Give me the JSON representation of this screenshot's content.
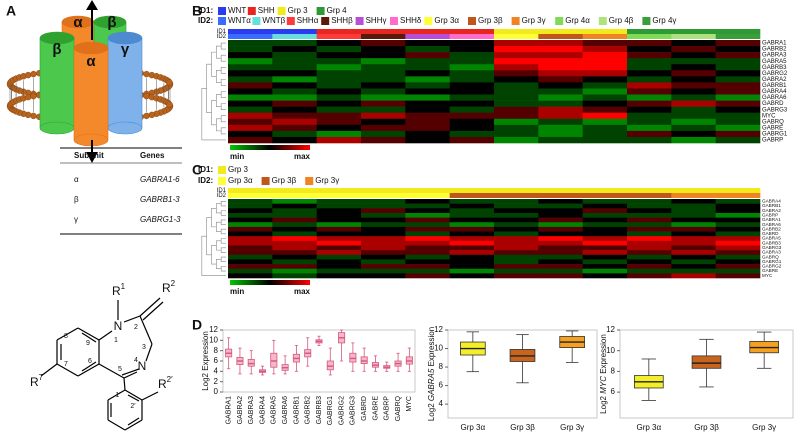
{
  "panels": [
    "A",
    "B",
    "C",
    "D"
  ],
  "receptor": {
    "labels": [
      "α",
      "β",
      "β",
      "α",
      "γ"
    ]
  },
  "table": {
    "header": [
      "Subunit",
      "Genes"
    ],
    "rows": [
      [
        "α",
        "GABRA1-6"
      ],
      [
        "β",
        "GABRB1-3"
      ],
      [
        "γ",
        "GABRG1-3"
      ]
    ]
  },
  "structure": {
    "atoms": [
      "N",
      "N"
    ],
    "groups": [
      {
        "text": "R",
        "sup": "1"
      },
      {
        "text": "R",
        "sup": "2"
      },
      {
        "text": "R",
        "sup": "7"
      },
      {
        "text": "R",
        "sup": "2′"
      }
    ],
    "numbers": [
      "1",
      "2",
      "3",
      "4",
      "5",
      "6",
      "7",
      "8",
      "9",
      "1′",
      "2′"
    ]
  },
  "chart_data": [
    {
      "type": "heatmap",
      "id_labels": [
        "ID1",
        "ID2"
      ],
      "id1_prefix": "ID1:",
      "id2_prefix": "ID2:",
      "id1": [
        {
          "name": "WNT",
          "color": "#2a3cf0"
        },
        {
          "name": "SHH",
          "color": "#e8261f"
        },
        {
          "name": "Grp 3",
          "color": "#f2ea1a"
        },
        {
          "name": "Grp 4",
          "color": "#2f9a35"
        }
      ],
      "id2": [
        {
          "name": "WNTα",
          "color": "#3a6cff",
          "parent": 0
        },
        {
          "name": "WNTβ",
          "color": "#66dede",
          "parent": 0
        },
        {
          "name": "SHHα",
          "color": "#ff3a3a",
          "parent": 1
        },
        {
          "name": "SHHβ",
          "color": "#5a1a0a",
          "parent": 1
        },
        {
          "name": "SHHγ",
          "color": "#b64fd8",
          "parent": 1
        },
        {
          "name": "SHHδ",
          "color": "#ff6ccc",
          "parent": 1
        },
        {
          "name": "Grp 3α",
          "color": "#ffff38",
          "parent": 2
        },
        {
          "name": "Grp 3β",
          "color": "#c0561a",
          "parent": 2
        },
        {
          "name": "Grp 3γ",
          "color": "#f08422",
          "parent": 2
        },
        {
          "name": "Grp 4α",
          "color": "#7fda55",
          "parent": 3
        },
        {
          "name": "Grp 4β",
          "color": "#aee27e",
          "parent": 3
        },
        {
          "name": "Grp 4γ",
          "color": "#3a9e3a",
          "parent": 3
        }
      ],
      "columns": [
        0,
        1,
        2,
        3,
        4,
        5,
        6,
        7,
        8,
        9,
        10,
        11
      ],
      "rows": [
        "GABRA1",
        "GABRB2",
        "GABRA3",
        "GABRA5",
        "GABRB3",
        "GABRG2",
        "GABRA2",
        "GABRB1",
        "GABRA4",
        "GABRA6",
        "GABRD",
        "GABRG3",
        "MYC",
        "GABRQ",
        "GABRE",
        "GABRG1",
        "GABRP"
      ],
      "values": [
        [
          -1,
          -1,
          0,
          1,
          0,
          0,
          2,
          2,
          1,
          1,
          0,
          1
        ],
        [
          -1,
          0,
          -1,
          0,
          -1,
          0,
          3,
          3,
          2,
          0,
          1,
          0
        ],
        [
          0,
          -1,
          0,
          0,
          1,
          -1,
          2,
          2,
          3,
          1,
          0,
          1
        ],
        [
          -2,
          -1,
          -1,
          -2,
          -1,
          -1,
          3,
          3,
          3,
          -1,
          -1,
          -1
        ],
        [
          -1,
          -1,
          -2,
          -1,
          -1,
          -2,
          2,
          3,
          3,
          -1,
          0,
          -1
        ],
        [
          0,
          0,
          -1,
          -1,
          0,
          -1,
          1,
          2,
          2,
          0,
          1,
          0
        ],
        [
          -1,
          -2,
          -1,
          -1,
          -2,
          -1,
          0,
          1,
          0,
          -1,
          0,
          -1
        ],
        [
          1,
          0,
          -1,
          0,
          -1,
          0,
          -1,
          0,
          -1,
          2,
          1,
          1
        ],
        [
          0,
          -1,
          0,
          -1,
          0,
          0,
          -1,
          -1,
          -2,
          1,
          0,
          1
        ],
        [
          -2,
          -2,
          -1,
          -2,
          -2,
          -1,
          -1,
          -2,
          -1,
          -2,
          -1,
          -2
        ],
        [
          0,
          1,
          0,
          1,
          0,
          0,
          -1,
          -1,
          0,
          1,
          2,
          1
        ],
        [
          -1,
          0,
          -1,
          -1,
          0,
          -1,
          1,
          2,
          1,
          0,
          -1,
          0
        ],
        [
          2,
          1,
          1,
          2,
          1,
          1,
          1,
          2,
          3,
          -1,
          -1,
          -1
        ],
        [
          1,
          2,
          1,
          0,
          1,
          0,
          -2,
          -1,
          -2,
          -1,
          -2,
          -1
        ],
        [
          2,
          1,
          0,
          1,
          1,
          0,
          -1,
          -2,
          -1,
          -2,
          -1,
          -2
        ],
        [
          0,
          -1,
          -2,
          -1,
          0,
          -1,
          -1,
          -2,
          -1,
          1,
          0,
          1
        ],
        [
          1,
          0,
          2,
          1,
          0,
          1,
          -2,
          -1,
          -1,
          -1,
          -2,
          -1
        ]
      ],
      "vlim": [
        -3,
        3
      ],
      "colorbar": [
        "min",
        "max"
      ]
    },
    {
      "type": "heatmap",
      "id_labels": [
        "ID1",
        "ID2"
      ],
      "id1_prefix": "ID1:",
      "id2_prefix": "ID2:",
      "id1": [
        {
          "name": "Grp 3",
          "color": "#f2ea1a"
        }
      ],
      "id2": [
        {
          "name": "Grp 3α",
          "color": "#ffff38",
          "parent": 0
        },
        {
          "name": "Grp 3β",
          "color": "#c0561a",
          "parent": 0
        },
        {
          "name": "Grp 3γ",
          "color": "#f08422",
          "parent": 0
        }
      ],
      "columns": [
        0,
        0,
        0,
        0,
        0,
        1,
        1,
        1,
        1,
        1,
        2,
        2
      ],
      "rows": [
        "GABRA4",
        "GABRB1",
        "GABRA2",
        "GABRP",
        "GABRA1",
        "GABRA6",
        "GABRB2",
        "GABRD",
        "GABRA5",
        "GABRB3",
        "GABRG3",
        "GABRA3",
        "GABRQ",
        "GABRG1",
        "GABRG2",
        "GABRE",
        "MYC"
      ],
      "values": [
        [
          -1,
          -2,
          -1,
          -1,
          0,
          -1,
          -1,
          0,
          -1,
          -1,
          0,
          -1
        ],
        [
          -1,
          0,
          -1,
          -1,
          -1,
          0,
          -1,
          -1,
          0,
          -1,
          -1,
          0
        ],
        [
          0,
          -1,
          0,
          1,
          0,
          -1,
          0,
          0,
          1,
          0,
          -1,
          0
        ],
        [
          -1,
          -1,
          0,
          -1,
          -2,
          -1,
          -1,
          0,
          -1,
          -1,
          -1,
          -2
        ],
        [
          0,
          1,
          0,
          0,
          1,
          0,
          0,
          1,
          0,
          1,
          0,
          0
        ],
        [
          -2,
          -1,
          -2,
          -1,
          -1,
          -2,
          -1,
          -2,
          -1,
          -1,
          -2,
          -1
        ],
        [
          1,
          0,
          1,
          0,
          1,
          1,
          0,
          1,
          0,
          1,
          1,
          0
        ],
        [
          0,
          -1,
          0,
          0,
          -1,
          0,
          -1,
          0,
          0,
          -1,
          0,
          -1
        ],
        [
          2,
          3,
          2,
          2,
          3,
          2,
          2,
          3,
          2,
          3,
          2,
          2
        ],
        [
          2,
          2,
          3,
          2,
          2,
          3,
          2,
          2,
          3,
          2,
          2,
          3
        ],
        [
          1,
          2,
          1,
          2,
          1,
          1,
          2,
          1,
          1,
          2,
          1,
          2
        ],
        [
          1,
          1,
          2,
          1,
          1,
          2,
          1,
          1,
          2,
          1,
          2,
          1
        ],
        [
          -1,
          0,
          -1,
          0,
          -1,
          0,
          -1,
          -1,
          0,
          -1,
          0,
          -1
        ],
        [
          0,
          -1,
          0,
          -1,
          0,
          0,
          -1,
          0,
          -1,
          0,
          -1,
          0
        ],
        [
          1,
          1,
          0,
          1,
          1,
          0,
          1,
          1,
          0,
          1,
          0,
          1
        ],
        [
          -1,
          -2,
          -1,
          -1,
          -1,
          -2,
          -1,
          -1,
          -2,
          -1,
          -1,
          -1
        ],
        [
          0,
          -1,
          0,
          0,
          1,
          0,
          1,
          1,
          0,
          1,
          2,
          1
        ]
      ],
      "vlim": [
        -3,
        3
      ],
      "colorbar": [
        "min",
        "max"
      ]
    },
    {
      "type": "box",
      "ylabel": [
        "Log2 Expression"
      ],
      "color": "#d6567e",
      "fill": "#f4b8c8",
      "categories": [
        "GABRA1",
        "GABRA2",
        "GABRA3",
        "GABRA4",
        "GABRA5",
        "GABRA6",
        "GABRB1",
        "GABRB2",
        "GABRB3",
        "GABRG1",
        "GABRG2",
        "GABRG3",
        "GABRD",
        "GABRE",
        "GABRP",
        "GABRQ",
        "MYC"
      ],
      "boxes": [
        {
          "low": 4.5,
          "q1": 6.8,
          "median": 7.5,
          "q3": 8.3,
          "high": 10.5
        },
        {
          "low": 3.5,
          "q1": 5.3,
          "median": 6,
          "q3": 6.7,
          "high": 8.5
        },
        {
          "low": 3.5,
          "q1": 5,
          "median": 5.5,
          "q3": 6.3,
          "high": 8
        },
        {
          "low": 3.3,
          "q1": 3.8,
          "median": 4,
          "q3": 4.3,
          "high": 5
        },
        {
          "low": 3.5,
          "q1": 4.8,
          "median": 6,
          "q3": 7.5,
          "high": 10
        },
        {
          "low": 3.5,
          "q1": 4.2,
          "median": 4.7,
          "q3": 5.3,
          "high": 7
        },
        {
          "low": 4,
          "q1": 5.8,
          "median": 6.5,
          "q3": 7.3,
          "high": 9
        },
        {
          "low": 5,
          "q1": 6.8,
          "median": 7.5,
          "q3": 8.2,
          "high": 10.5
        },
        {
          "low": 9,
          "q1": 9.5,
          "median": 9.8,
          "q3": 10.1,
          "high": 10.8
        },
        {
          "low": 3.3,
          "q1": 4.3,
          "median": 5,
          "q3": 6,
          "high": 8.5
        },
        {
          "low": 6,
          "q1": 9.5,
          "median": 10.5,
          "q3": 11.5,
          "high": 12
        },
        {
          "low": 4,
          "q1": 5.8,
          "median": 6.5,
          "q3": 7.5,
          "high": 9.5
        },
        {
          "low": 4,
          "q1": 5.5,
          "median": 6,
          "q3": 6.8,
          "high": 8.5
        },
        {
          "low": 4,
          "q1": 4.8,
          "median": 5.2,
          "q3": 5.7,
          "high": 7
        },
        {
          "low": 4,
          "q1": 4.6,
          "median": 4.8,
          "q3": 5.1,
          "high": 5.8
        },
        {
          "low": 4,
          "q1": 5,
          "median": 5.5,
          "q3": 6,
          "high": 7.5
        },
        {
          "low": 4,
          "q1": 5.4,
          "median": 6,
          "q3": 6.8,
          "high": 8.5
        }
      ],
      "ylim": [
        0,
        12
      ],
      "yticks": [
        0,
        2,
        4,
        6,
        8,
        10,
        12
      ]
    },
    {
      "type": "box",
      "ylabel": [
        "Log2 ",
        "GABRA5",
        " Expression"
      ],
      "colors": [
        "#f4ee2a",
        "#c8641e",
        "#f5a020"
      ],
      "categories": [
        "Grp 3α",
        "Grp 3β",
        "Grp 3γ"
      ],
      "boxes": [
        {
          "low": 7.5,
          "q1": 9.3,
          "median": 10,
          "q3": 10.7,
          "high": 11.8
        },
        {
          "low": 6.3,
          "q1": 8.6,
          "median": 9.2,
          "q3": 9.9,
          "high": 11.5
        },
        {
          "low": 8.5,
          "q1": 10.1,
          "median": 10.7,
          "q3": 11.3,
          "high": 11.9
        }
      ],
      "ylim": [
        2.5,
        12
      ],
      "yticks": [
        4,
        6,
        8,
        10,
        12
      ]
    },
    {
      "type": "box",
      "ylabel": [
        "Log2 ",
        "MYC",
        " Expression"
      ],
      "colors": [
        "#f4ee2a",
        "#c8641e",
        "#f5a020"
      ],
      "categories": [
        "Grp 3α",
        "Grp 3β",
        "Grp 3γ"
      ],
      "boxes": [
        {
          "low": 5.2,
          "q1": 6.4,
          "median": 7,
          "q3": 7.6,
          "high": 9.2
        },
        {
          "low": 6.5,
          "q1": 8.3,
          "median": 8.8,
          "q3": 9.5,
          "high": 11.1
        },
        {
          "low": 8.3,
          "q1": 9.8,
          "median": 10.3,
          "q3": 10.9,
          "high": 11.8
        }
      ],
      "ylim": [
        3.5,
        12
      ],
      "yticks": [
        6,
        8,
        10,
        12
      ]
    }
  ]
}
